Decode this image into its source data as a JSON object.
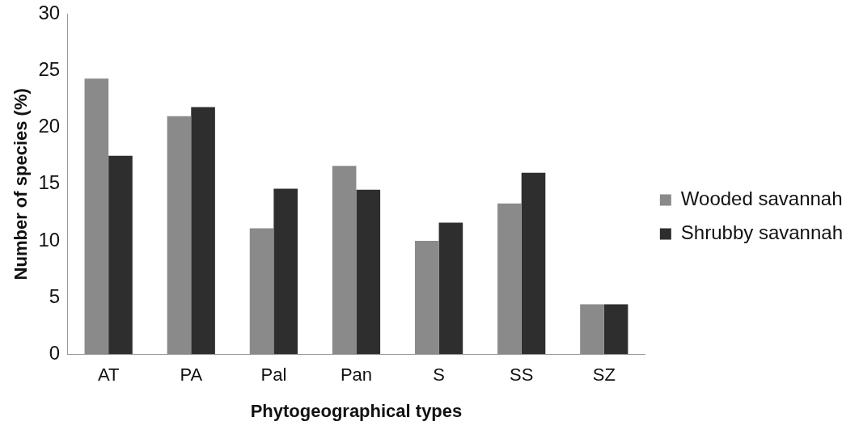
{
  "chart_data": {
    "type": "bar",
    "xlabel": "Phytogeographical types",
    "ylabel": "Number of species (%)",
    "categories": [
      "AT",
      "PA",
      "Pal",
      "Pan",
      "S",
      "SS",
      "SZ"
    ],
    "series": [
      {
        "name": "Wooded savannah",
        "color": "#8a8a8a",
        "values": [
          24.3,
          21.0,
          11.1,
          16.6,
          10.0,
          13.3,
          4.4
        ]
      },
      {
        "name": "Shrubby savannah",
        "color": "#2e2e2e",
        "values": [
          17.5,
          21.8,
          14.6,
          14.5,
          11.6,
          16.0,
          4.4
        ]
      }
    ],
    "ylim": [
      0,
      30
    ],
    "yticks": [
      0,
      5,
      10,
      15,
      20,
      25,
      30
    ],
    "grid": false,
    "legend": "right"
  }
}
